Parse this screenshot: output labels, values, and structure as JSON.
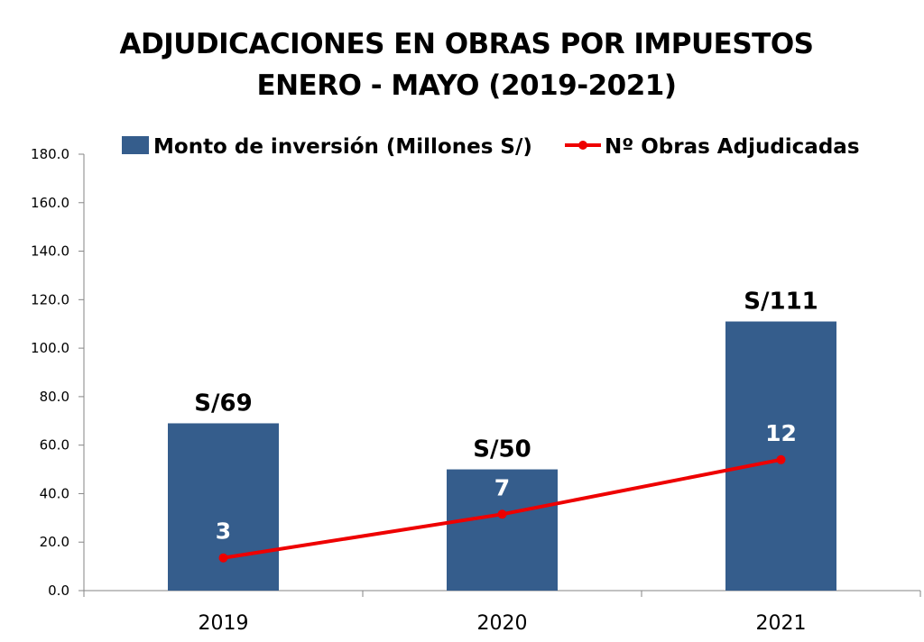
{
  "title": {
    "line1": "ADJUDICACIONES EN OBRAS POR IMPUESTOS",
    "line2": "ENERO - MAYO (2019-2021)"
  },
  "colors": {
    "bar": "#355d8c",
    "line": "#ee0000",
    "axis": "#868686"
  },
  "chart_data": {
    "type": "bar",
    "categories": [
      "2019",
      "2020",
      "2021"
    ],
    "ylim": [
      0,
      180
    ],
    "yticks": [
      "0.0",
      "20.0",
      "40.0",
      "60.0",
      "80.0",
      "100.0",
      "120.0",
      "140.0",
      "160.0",
      "180.0"
    ],
    "grid": false,
    "legend_position": "top",
    "series": [
      {
        "name": "Monto de inversión (Millones S/)",
        "type": "bar",
        "values": [
          69,
          50,
          111
        ],
        "labels": [
          "S/69",
          "S/50",
          "S/111"
        ]
      },
      {
        "name": "Nº Obras Adjudicadas",
        "type": "line",
        "values": [
          3,
          7,
          12
        ],
        "labels": [
          "3",
          "7",
          "12"
        ]
      }
    ],
    "secondary_axis": {
      "visible": false,
      "range": [
        0,
        40
      ]
    }
  }
}
